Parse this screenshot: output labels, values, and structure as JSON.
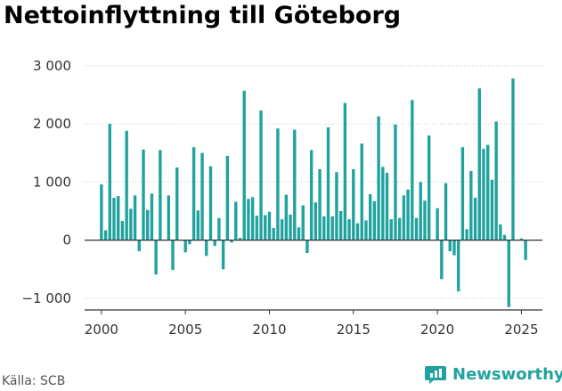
{
  "title": "Nettoinflyttning till Göteborg",
  "source": "Källa: SCB",
  "brand": {
    "name": "Newsworthy",
    "icon": "newsworthy-logo-icon"
  },
  "colors": {
    "bar": "#20a39e",
    "axis": "#333333",
    "grid": "#cccccc",
    "brand": "#20a39e"
  },
  "chart_data": {
    "type": "bar",
    "title": "Nettoinflyttning till Göteborg",
    "xlabel": "",
    "ylabel": "",
    "xlim": [
      1999.0,
      2026.25
    ],
    "ylim": [
      -1200,
      3150
    ],
    "grid": true,
    "y_ticks": [
      -1000,
      0,
      1000,
      2000,
      3000
    ],
    "y_tick_labels": [
      "−1 000",
      "0",
      "1 000",
      "2 000",
      "3 000"
    ],
    "x_ticks": [
      2000,
      2005,
      2010,
      2015,
      2020,
      2025
    ],
    "x_tick_labels": [
      "2000",
      "2005",
      "2010",
      "2015",
      "2020",
      "2025"
    ],
    "x": [
      2000.0,
      2000.25,
      2000.5,
      2000.75,
      2001.0,
      2001.25,
      2001.5,
      2001.75,
      2002.0,
      2002.25,
      2002.5,
      2002.75,
      2003.0,
      2003.25,
      2003.5,
      2003.75,
      2004.0,
      2004.25,
      2004.5,
      2004.75,
      2005.0,
      2005.25,
      2005.5,
      2005.75,
      2006.0,
      2006.25,
      2006.5,
      2006.75,
      2007.0,
      2007.25,
      2007.5,
      2007.75,
      2008.0,
      2008.25,
      2008.5,
      2008.75,
      2009.0,
      2009.25,
      2009.5,
      2009.75,
      2010.0,
      2010.25,
      2010.5,
      2010.75,
      2011.0,
      2011.25,
      2011.5,
      2011.75,
      2012.0,
      2012.25,
      2012.5,
      2012.75,
      2013.0,
      2013.25,
      2013.5,
      2013.75,
      2014.0,
      2014.25,
      2014.5,
      2014.75,
      2015.0,
      2015.25,
      2015.5,
      2015.75,
      2016.0,
      2016.25,
      2016.5,
      2016.75,
      2017.0,
      2017.25,
      2017.5,
      2017.75,
      2018.0,
      2018.25,
      2018.5,
      2018.75,
      2019.0,
      2019.25,
      2019.5,
      2019.75,
      2020.0,
      2020.25,
      2020.5,
      2020.75,
      2021.0,
      2021.25,
      2021.5,
      2021.75,
      2022.0,
      2022.25,
      2022.5,
      2022.75,
      2023.0,
      2023.25,
      2023.5,
      2023.75,
      2024.0,
      2024.25,
      2024.5,
      2024.75,
      2025.0,
      2025.25
    ],
    "values": [
      960,
      170,
      2000,
      730,
      760,
      330,
      1880,
      540,
      770,
      -190,
      1560,
      520,
      800,
      -590,
      1550,
      0,
      770,
      -510,
      1250,
      0,
      -210,
      -70,
      1600,
      510,
      1500,
      -270,
      1270,
      -100,
      380,
      -500,
      1450,
      -40,
      660,
      40,
      2570,
      710,
      740,
      420,
      2230,
      430,
      490,
      210,
      1920,
      360,
      780,
      440,
      1900,
      220,
      600,
      -220,
      1550,
      650,
      1220,
      410,
      1940,
      410,
      1170,
      500,
      2360,
      360,
      1220,
      290,
      1660,
      340,
      790,
      670,
      2130,
      1260,
      1160,
      360,
      1990,
      380,
      770,
      870,
      2410,
      380,
      1000,
      680,
      1800,
      0,
      550,
      -670,
      980,
      -190,
      -260,
      -880,
      1600,
      190,
      1190,
      730,
      2610,
      1570,
      1640,
      1040,
      2040,
      270,
      90,
      -1150,
      2780,
      0,
      30,
      -340
    ]
  }
}
